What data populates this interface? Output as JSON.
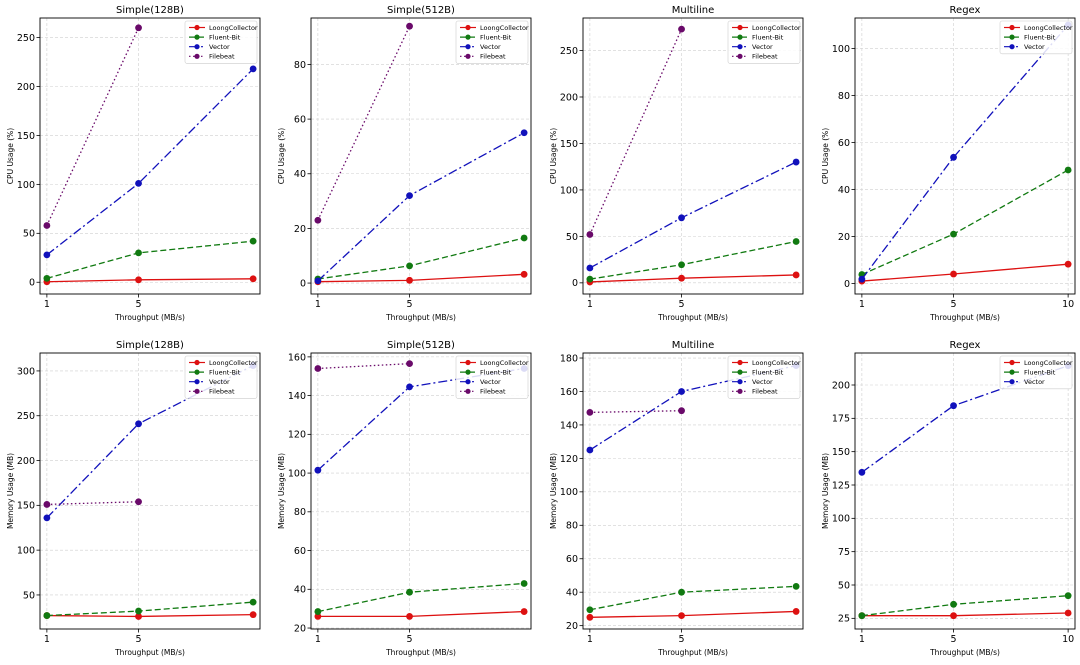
{
  "figure": {
    "series_styles": [
      {
        "name": "LoongCollector",
        "color": "#dd1111",
        "dash": "none"
      },
      {
        "name": "Fluent-Bit",
        "color": "#117a11",
        "dash": "6,3"
      },
      {
        "name": "Vector",
        "color": "#1111bb",
        "dash": "9,3,2,3"
      },
      {
        "name": "Filebeat",
        "color": "#6a0a6a",
        "dash": "1.5,2.5"
      }
    ],
    "legend_position": "top-right",
    "grid": true
  },
  "chart_data": [
    {
      "type": "line",
      "title": "Simple(128B)",
      "xlabel": "Throughput (MB/s)",
      "ylabel": "CPU Usage (%)",
      "x_ticks": [
        "1",
        "5"
      ],
      "x": [
        1,
        5,
        10
      ],
      "xlim": [
        0.7,
        10.3
      ],
      "ylim": [
        -12,
        270
      ],
      "y_ticks": [
        0,
        50,
        100,
        150,
        200,
        250
      ],
      "legend": [
        "LoongCollector",
        "Fluent-Bit",
        "Vector",
        "Filebeat"
      ],
      "series": [
        {
          "name": "LoongCollector",
          "x": [
            1,
            5,
            10
          ],
          "values": [
            0.5,
            2.5,
            3.5
          ]
        },
        {
          "name": "Fluent-Bit",
          "x": [
            1,
            5,
            10
          ],
          "values": [
            4,
            30,
            42
          ]
        },
        {
          "name": "Vector",
          "x": [
            1,
            5,
            10
          ],
          "values": [
            28,
            101,
            218
          ]
        },
        {
          "name": "Filebeat",
          "x": [
            1,
            5
          ],
          "values": [
            58,
            260
          ]
        }
      ]
    },
    {
      "type": "line",
      "title": "Simple(512B)",
      "xlabel": "Throughput (MB/s)",
      "ylabel": "CPU Usage (%)",
      "x_ticks": [
        "1",
        "5"
      ],
      "x": [
        1,
        5,
        10
      ],
      "xlim": [
        0.7,
        10.3
      ],
      "ylim": [
        -4,
        97
      ],
      "y_ticks": [
        0,
        20,
        40,
        60,
        80
      ],
      "legend": [
        "LoongCollector",
        "Fluent-Bit",
        "Vector",
        "Filebeat"
      ],
      "series": [
        {
          "name": "LoongCollector",
          "x": [
            1,
            5,
            10
          ],
          "values": [
            0.5,
            1,
            3.2
          ]
        },
        {
          "name": "Fluent-Bit",
          "x": [
            1,
            5,
            10
          ],
          "values": [
            1.5,
            6.3,
            16.5
          ]
        },
        {
          "name": "Vector",
          "x": [
            1,
            5,
            10
          ],
          "values": [
            0.8,
            32,
            55
          ]
        },
        {
          "name": "Filebeat",
          "x": [
            1,
            5
          ],
          "values": [
            23,
            94
          ]
        }
      ]
    },
    {
      "type": "line",
      "title": "Multiline",
      "xlabel": "Throughput (MB/s)",
      "ylabel": "CPU Usage (%)",
      "x_ticks": [
        "1",
        "5"
      ],
      "x": [
        1,
        5,
        10
      ],
      "xlim": [
        0.7,
        10.3
      ],
      "ylim": [
        -12,
        285
      ],
      "y_ticks": [
        0,
        50,
        100,
        150,
        200,
        250
      ],
      "legend": [
        "LoongCollector",
        "Fluent-Bit",
        "Vector",
        "Filebeat"
      ],
      "series": [
        {
          "name": "LoongCollector",
          "x": [
            1,
            5,
            10
          ],
          "values": [
            1,
            5,
            8.5
          ]
        },
        {
          "name": "Fluent-Bit",
          "x": [
            1,
            5,
            10
          ],
          "values": [
            4,
            19.5,
            44.5
          ]
        },
        {
          "name": "Vector",
          "x": [
            1,
            5,
            10
          ],
          "values": [
            16,
            70,
            130
          ]
        },
        {
          "name": "Filebeat",
          "x": [
            1,
            5
          ],
          "values": [
            52,
            273
          ]
        }
      ]
    },
    {
      "type": "line",
      "title": "Regex",
      "xlabel": "Throughput (MB/s)",
      "ylabel": "CPU Usage (%)",
      "x_ticks": [
        "1",
        "5",
        "10"
      ],
      "x": [
        1,
        5,
        10
      ],
      "xlim": [
        0.7,
        10.3
      ],
      "ylim": [
        -4.5,
        113
      ],
      "y_ticks": [
        0,
        20,
        40,
        60,
        80,
        100
      ],
      "legend": [
        "LoongCollector",
        "Fluent-Bit",
        "Vector"
      ],
      "series": [
        {
          "name": "LoongCollector",
          "x": [
            1,
            5,
            10
          ],
          "values": [
            1,
            4,
            8.2
          ]
        },
        {
          "name": "Fluent-Bit",
          "x": [
            1,
            5,
            10
          ],
          "values": [
            3.8,
            21,
            48.3
          ]
        },
        {
          "name": "Vector",
          "x": [
            1,
            5,
            10
          ],
          "values": [
            1.8,
            53.7,
            110
          ]
        }
      ]
    },
    {
      "type": "line",
      "title": "Simple(128B)",
      "xlabel": "Throughput (MB/s)",
      "ylabel": "Memory Usage (MB)",
      "x_ticks": [
        "1",
        "5"
      ],
      "x": [
        1,
        5,
        10
      ],
      "xlim": [
        0.7,
        10.3
      ],
      "ylim": [
        12,
        320
      ],
      "y_ticks": [
        50,
        100,
        150,
        200,
        250,
        300
      ],
      "legend": [
        "LoongCollector",
        "Fluent-Bit",
        "Vector",
        "Filebeat"
      ],
      "series": [
        {
          "name": "LoongCollector",
          "x": [
            1,
            5,
            10
          ],
          "values": [
            27,
            26,
            28
          ]
        },
        {
          "name": "Fluent-Bit",
          "x": [
            1,
            5,
            10
          ],
          "values": [
            27,
            32,
            42
          ]
        },
        {
          "name": "Vector",
          "x": [
            1,
            5,
            10
          ],
          "values": [
            136,
            241,
            306
          ]
        },
        {
          "name": "Filebeat",
          "x": [
            1,
            5
          ],
          "values": [
            151,
            154
          ]
        }
      ]
    },
    {
      "type": "line",
      "title": "Simple(512B)",
      "xlabel": "Throughput (MB/s)",
      "ylabel": "Memory Usage (MB)",
      "x_ticks": [
        "1",
        "5"
      ],
      "x": [
        1,
        5,
        10
      ],
      "xlim": [
        0.7,
        10.3
      ],
      "ylim": [
        19.5,
        162
      ],
      "y_ticks": [
        20,
        40,
        60,
        80,
        100,
        120,
        140,
        160
      ],
      "legend": [
        "LoongCollector",
        "Fluent-Bit",
        "Vector",
        "Filebeat"
      ],
      "series": [
        {
          "name": "LoongCollector",
          "x": [
            1,
            5,
            10
          ],
          "values": [
            26,
            26,
            28.5
          ]
        },
        {
          "name": "Fluent-Bit",
          "x": [
            1,
            5,
            10
          ],
          "values": [
            28.5,
            38.5,
            43
          ]
        },
        {
          "name": "Vector",
          "x": [
            1,
            5,
            10
          ],
          "values": [
            101.5,
            144.5,
            154
          ]
        },
        {
          "name": "Filebeat",
          "x": [
            1,
            5
          ],
          "values": [
            154,
            156.5
          ]
        }
      ]
    },
    {
      "type": "line",
      "title": "Multiline",
      "xlabel": "Throughput (MB/s)",
      "ylabel": "Memory Usage (MB)",
      "x_ticks": [
        "1",
        "5"
      ],
      "x": [
        1,
        5,
        10
      ],
      "xlim": [
        0.7,
        10.3
      ],
      "ylim": [
        18,
        183
      ],
      "y_ticks": [
        20,
        40,
        60,
        80,
        100,
        120,
        140,
        160,
        180
      ],
      "legend": [
        "LoongCollector",
        "Fluent-Bit",
        "Vector",
        "Filebeat"
      ],
      "series": [
        {
          "name": "LoongCollector",
          "x": [
            1,
            5,
            10
          ],
          "values": [
            25,
            26,
            28.5
          ]
        },
        {
          "name": "Fluent-Bit",
          "x": [
            1,
            5,
            10
          ],
          "values": [
            29.5,
            40,
            43.5
          ]
        },
        {
          "name": "Vector",
          "x": [
            1,
            5,
            10
          ],
          "values": [
            125,
            160,
            175.5
          ]
        },
        {
          "name": "Filebeat",
          "x": [
            1,
            5
          ],
          "values": [
            147.5,
            148.5
          ]
        }
      ]
    },
    {
      "type": "line",
      "title": "Regex",
      "xlabel": "Throughput (MB/s)",
      "ylabel": "Memory Usage (MB)",
      "x_ticks": [
        "1",
        "5",
        "10"
      ],
      "x": [
        1,
        5,
        10
      ],
      "xlim": [
        0.7,
        10.3
      ],
      "ylim": [
        17,
        224
      ],
      "y_ticks": [
        25,
        50,
        75,
        100,
        125,
        150,
        175,
        200
      ],
      "legend": [
        "LoongCollector",
        "Fluent-Bit",
        "Vector"
      ],
      "series": [
        {
          "name": "LoongCollector",
          "x": [
            1,
            5,
            10
          ],
          "values": [
            27,
            27,
            29
          ]
        },
        {
          "name": "Fluent-Bit",
          "x": [
            1,
            5,
            10
          ],
          "values": [
            27,
            35.5,
            42
          ]
        },
        {
          "name": "Vector",
          "x": [
            1,
            5,
            10
          ],
          "values": [
            134.5,
            184.5,
            214.5
          ]
        }
      ]
    }
  ]
}
